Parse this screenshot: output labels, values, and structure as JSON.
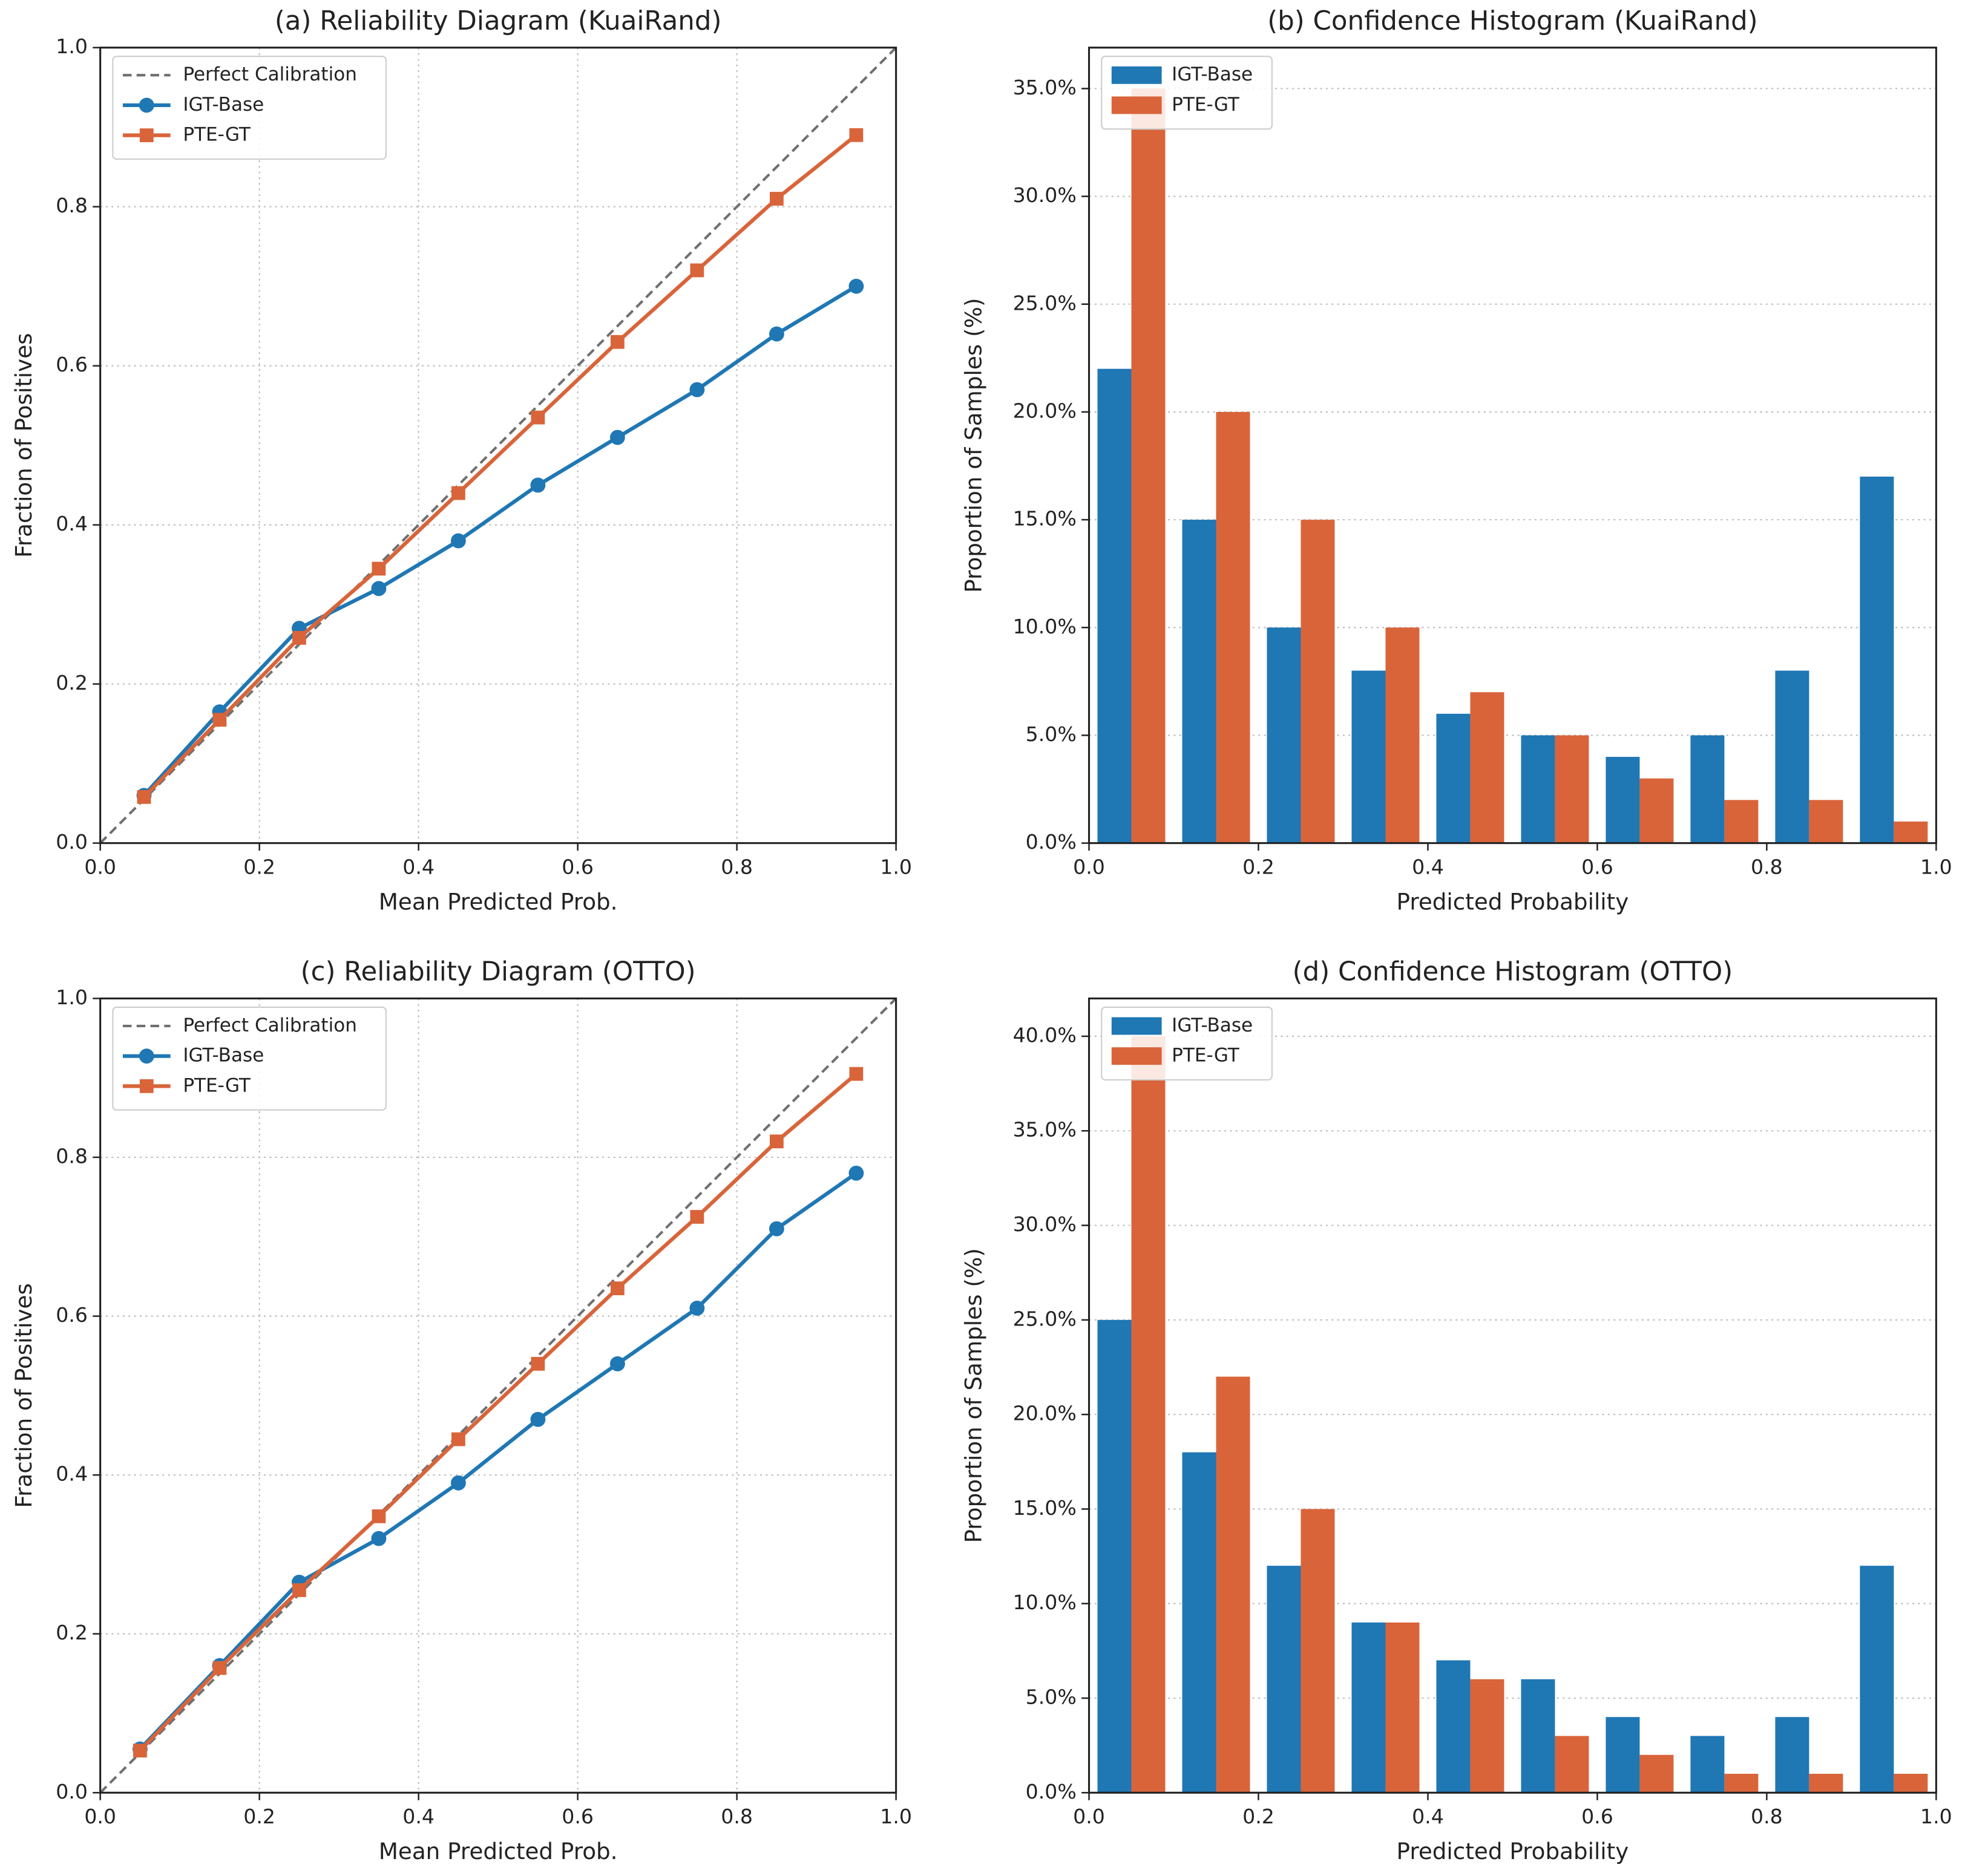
{
  "chart_data": [
    {
      "type": "line",
      "title": "(a) Reliability Diagram (KuaiRand)",
      "xlabel": "Mean Predicted Prob.",
      "ylabel": "Fraction of Positives",
      "xlim": [
        0,
        1
      ],
      "ylim": [
        0,
        1
      ],
      "xticks": [
        {
          "value": 0,
          "label": "0.0"
        },
        0.2,
        0.4,
        0.6,
        0.8,
        {
          "value": 1,
          "label": "1.0"
        }
      ],
      "yticks": [
        {
          "value": 0,
          "label": "0.0"
        },
        0.2,
        0.4,
        0.6,
        0.8,
        {
          "value": 1,
          "label": "1.0"
        }
      ],
      "grid": "both",
      "legend": "upper left",
      "series": [
        {
          "name": "Perfect Calibration",
          "color": "#707070",
          "linestyle": "dashed",
          "x": [
            0,
            1
          ],
          "values": [
            0,
            1
          ]
        },
        {
          "name": "IGT-Base",
          "color": "#1f77b4",
          "linestyle": "solid",
          "marker": "circle",
          "x": [
            0.055,
            0.15,
            0.25,
            0.35,
            0.45,
            0.55,
            0.65,
            0.75,
            0.85,
            0.95
          ],
          "values": [
            0.06,
            0.165,
            0.27,
            0.32,
            0.38,
            0.45,
            0.51,
            0.57,
            0.64,
            0.7
          ]
        },
        {
          "name": "PTE-GT",
          "color": "#d9643a",
          "linestyle": "solid",
          "marker": "square",
          "x": [
            0.055,
            0.15,
            0.25,
            0.35,
            0.45,
            0.55,
            0.65,
            0.75,
            0.85,
            0.95
          ],
          "values": [
            0.058,
            0.155,
            0.258,
            0.345,
            0.44,
            0.535,
            0.63,
            0.72,
            0.81,
            0.89
          ]
        }
      ]
    },
    {
      "type": "histogram",
      "title": "(b) Confidence Histogram (KuaiRand)",
      "xlabel": "Predicted Probability",
      "ylabel": "Proportion of Samples (%)",
      "xlim": [
        0,
        1
      ],
      "ylim": [
        0,
        36.9
      ],
      "xticks": [
        {
          "value": 0,
          "label": "0.0"
        },
        0.2,
        0.4,
        0.6,
        0.8,
        {
          "value": 1,
          "label": "1.0"
        }
      ],
      "yticks": [
        {
          "value": 0,
          "label": "0.0%"
        },
        {
          "value": 5,
          "label": "5.0%"
        },
        {
          "value": 10,
          "label": "10.0%"
        },
        {
          "value": 15,
          "label": "15.0%"
        },
        {
          "value": 20,
          "label": "20.0%"
        },
        {
          "value": 25,
          "label": "25.0%"
        },
        {
          "value": 30,
          "label": "30.0%"
        },
        {
          "value": 35,
          "label": "35.0%"
        }
      ],
      "grid": "y",
      "legend": "upper left",
      "bins": [
        0,
        0.1,
        0.2,
        0.3,
        0.4,
        0.5,
        0.6,
        0.7,
        0.8,
        0.9,
        1
      ],
      "series": [
        {
          "name": "IGT-Base",
          "color": "#1f77b4",
          "values": [
            22,
            15,
            10,
            8,
            6,
            5,
            4,
            5,
            8,
            17
          ]
        },
        {
          "name": "PTE-GT",
          "color": "#d9643a",
          "values": [
            35,
            20,
            15,
            10,
            7,
            5,
            3,
            2,
            2,
            1
          ]
        }
      ]
    },
    {
      "type": "line",
      "title": "(c) Reliability Diagram (OTTO)",
      "xlabel": "Mean Predicted Prob.",
      "ylabel": "Fraction of Positives",
      "xlim": [
        0,
        1
      ],
      "ylim": [
        0,
        1
      ],
      "xticks": [
        {
          "value": 0,
          "label": "0.0"
        },
        0.2,
        0.4,
        0.6,
        0.8,
        {
          "value": 1,
          "label": "1.0"
        }
      ],
      "yticks": [
        {
          "value": 0,
          "label": "0.0"
        },
        0.2,
        0.4,
        0.6,
        0.8,
        {
          "value": 1,
          "label": "1.0"
        }
      ],
      "grid": "both",
      "legend": "upper left",
      "series": [
        {
          "name": "Perfect Calibration",
          "color": "#707070",
          "linestyle": "dashed",
          "x": [
            0,
            1
          ],
          "values": [
            0,
            1
          ]
        },
        {
          "name": "IGT-Base",
          "color": "#1f77b4",
          "linestyle": "solid",
          "marker": "circle",
          "x": [
            0.05,
            0.15,
            0.25,
            0.35,
            0.45,
            0.55,
            0.65,
            0.75,
            0.85,
            0.95
          ],
          "values": [
            0.055,
            0.16,
            0.265,
            0.32,
            0.39,
            0.47,
            0.54,
            0.61,
            0.71,
            0.78
          ]
        },
        {
          "name": "PTE-GT",
          "color": "#d9643a",
          "linestyle": "solid",
          "marker": "square",
          "x": [
            0.05,
            0.15,
            0.25,
            0.35,
            0.45,
            0.55,
            0.65,
            0.75,
            0.85,
            0.95
          ],
          "values": [
            0.053,
            0.157,
            0.255,
            0.348,
            0.445,
            0.54,
            0.635,
            0.725,
            0.82,
            0.905
          ]
        }
      ]
    },
    {
      "type": "histogram",
      "title": "(d) Confidence Histogram (OTTO)",
      "xlabel": "Predicted Probability",
      "ylabel": "Proportion of Samples (%)",
      "xlim": [
        0,
        1
      ],
      "ylim": [
        0,
        42
      ],
      "xticks": [
        {
          "value": 0,
          "label": "0.0"
        },
        0.2,
        0.4,
        0.6,
        0.8,
        {
          "value": 1,
          "label": "1.0"
        }
      ],
      "yticks": [
        {
          "value": 0,
          "label": "0.0%"
        },
        {
          "value": 5,
          "label": "5.0%"
        },
        {
          "value": 10,
          "label": "10.0%"
        },
        {
          "value": 15,
          "label": "15.0%"
        },
        {
          "value": 20,
          "label": "20.0%"
        },
        {
          "value": 25,
          "label": "25.0%"
        },
        {
          "value": 30,
          "label": "30.0%"
        },
        {
          "value": 35,
          "label": "35.0%"
        },
        {
          "value": 40,
          "label": "40.0%"
        }
      ],
      "grid": "y",
      "legend": "upper left",
      "bins": [
        0,
        0.1,
        0.2,
        0.3,
        0.4,
        0.5,
        0.6,
        0.7,
        0.8,
        0.9,
        1
      ],
      "series": [
        {
          "name": "IGT-Base",
          "color": "#1f77b4",
          "values": [
            25,
            18,
            12,
            9,
            7,
            6,
            4,
            3,
            4,
            12
          ]
        },
        {
          "name": "PTE-GT",
          "color": "#d9643a",
          "values": [
            40,
            22,
            15,
            9,
            6,
            3,
            2,
            1,
            1,
            1
          ]
        }
      ]
    }
  ]
}
